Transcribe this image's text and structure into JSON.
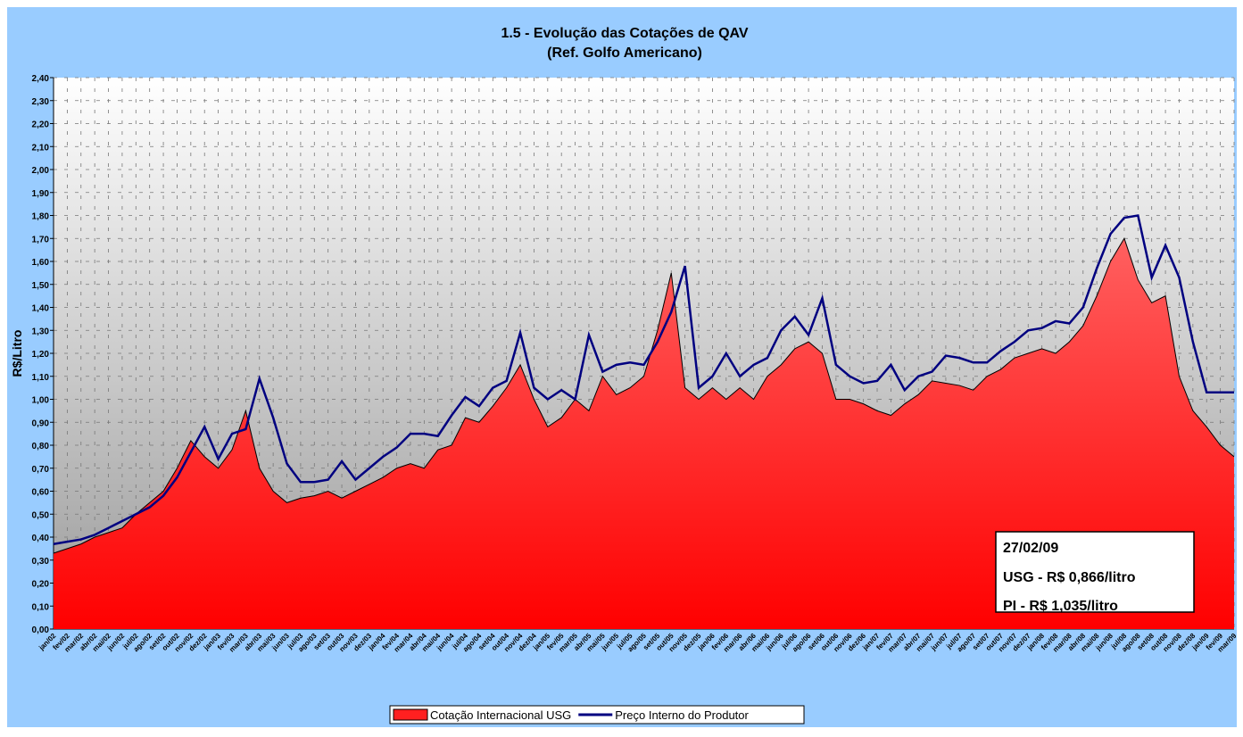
{
  "chart_data": {
    "type": "area-line",
    "title": "1.5 - Evolução das Cotações de QAV",
    "subtitle": "(Ref. Golfo Americano)",
    "y_label": "R$/Litro",
    "categories": [
      "jan/02",
      "fev/02",
      "mar/02",
      "abr/02",
      "mai/02",
      "jun/02",
      "jul/02",
      "ago/02",
      "set/02",
      "out/02",
      "nov/02",
      "dez/02",
      "jan/03",
      "fev/03",
      "mar/03",
      "abr/03",
      "mai/03",
      "jun/03",
      "jul/03",
      "ago/03",
      "set/03",
      "out/03",
      "nov/03",
      "dez/03",
      "jan/04",
      "fev/04",
      "mar/04",
      "abr/04",
      "mai/04",
      "jun/04",
      "jul/04",
      "ago/04",
      "set/04",
      "out/04",
      "nov/04",
      "dez/04",
      "jan/05",
      "fev/05",
      "mar/05",
      "abr/05",
      "mai/05",
      "jun/05",
      "jul/05",
      "ago/05",
      "set/05",
      "out/05",
      "nov/05",
      "dez/05",
      "jan/06",
      "fev/06",
      "mar/06",
      "abr/06",
      "mai/06",
      "jun/06",
      "jul/06",
      "ago/06",
      "set/06",
      "out/06",
      "nov/06",
      "dez/06",
      "jan/07",
      "fev/07",
      "mar/07",
      "abr/07",
      "mai/07",
      "jun/07",
      "jul/07",
      "ago/07",
      "set/07",
      "out/07",
      "nov/07",
      "dez/07",
      "jan/08",
      "fev/08",
      "mar/08",
      "abr/08",
      "mai/08",
      "jun/08",
      "jul/08",
      "ago/08",
      "set/08",
      "out/08",
      "nov/08",
      "dez/08",
      "jan/09",
      "fev/09",
      "mar/09"
    ],
    "series": [
      {
        "name": "Cotação Internacional USG",
        "color": "#ff2020",
        "kind": "area",
        "values": [
          0.33,
          0.35,
          0.37,
          0.4,
          0.42,
          0.44,
          0.5,
          0.55,
          0.6,
          0.7,
          0.82,
          0.75,
          0.7,
          0.78,
          0.95,
          0.7,
          0.6,
          0.55,
          0.57,
          0.58,
          0.6,
          0.57,
          0.6,
          0.63,
          0.66,
          0.7,
          0.72,
          0.7,
          0.78,
          0.8,
          0.92,
          0.9,
          0.97,
          1.05,
          1.15,
          1.0,
          0.88,
          0.92,
          1.0,
          0.95,
          1.1,
          1.02,
          1.05,
          1.1,
          1.3,
          1.55,
          1.05,
          1.0,
          1.05,
          1.0,
          1.05,
          1.0,
          1.1,
          1.15,
          1.22,
          1.25,
          1.2,
          1.0,
          1.0,
          0.98,
          0.95,
          0.93,
          0.98,
          1.02,
          1.08,
          1.07,
          1.06,
          1.04,
          1.1,
          1.13,
          1.18,
          1.2,
          1.22,
          1.2,
          1.25,
          1.32,
          1.45,
          1.6,
          1.7,
          1.52,
          1.42,
          1.45,
          1.1,
          0.95,
          0.88,
          0.8,
          0.75
        ]
      },
      {
        "name": "Preço Interno do Produtor",
        "color": "#000080",
        "kind": "line",
        "values": [
          0.37,
          0.38,
          0.39,
          0.41,
          0.44,
          0.47,
          0.5,
          0.53,
          0.58,
          0.66,
          0.77,
          0.88,
          0.74,
          0.85,
          0.87,
          1.09,
          0.92,
          0.72,
          0.64,
          0.64,
          0.65,
          0.73,
          0.65,
          0.7,
          0.75,
          0.79,
          0.85,
          0.85,
          0.84,
          0.93,
          1.01,
          0.97,
          1.05,
          1.08,
          1.29,
          1.05,
          1.0,
          1.04,
          1.0,
          1.28,
          1.12,
          1.15,
          1.16,
          1.15,
          1.25,
          1.38,
          1.58,
          1.05,
          1.1,
          1.2,
          1.1,
          1.15,
          1.18,
          1.3,
          1.36,
          1.28,
          1.44,
          1.15,
          1.1,
          1.07,
          1.08,
          1.15,
          1.04,
          1.1,
          1.12,
          1.19,
          1.18,
          1.16,
          1.16,
          1.21,
          1.25,
          1.3,
          1.31,
          1.34,
          1.33,
          1.4,
          1.57,
          1.72,
          1.79,
          1.8,
          1.53,
          1.67,
          1.53,
          1.25,
          1.03,
          1.03,
          1.03
        ]
      }
    ],
    "ylim": [
      0,
      2.4
    ],
    "yticks": [
      {
        "value": 0,
        "label": "0,00"
      },
      {
        "value": 0.1,
        "label": "0,10"
      },
      {
        "value": 0.2,
        "label": "0,20"
      },
      {
        "value": 0.3,
        "label": "0,30"
      },
      {
        "value": 0.4,
        "label": "0,40"
      },
      {
        "value": 0.5,
        "label": "0,50"
      },
      {
        "value": 0.6,
        "label": "0,60"
      },
      {
        "value": 0.7,
        "label": "0,70"
      },
      {
        "value": 0.8,
        "label": "0,80"
      },
      {
        "value": 0.9,
        "label": "0,90"
      },
      {
        "value": 1.0,
        "label": "1,00"
      },
      {
        "value": 1.1,
        "label": "1,10"
      },
      {
        "value": 1.2,
        "label": "1,20"
      },
      {
        "value": 1.3,
        "label": "1,30"
      },
      {
        "value": 1.4,
        "label": "1,40"
      },
      {
        "value": 1.5,
        "label": "1,50"
      },
      {
        "value": 1.6,
        "label": "1,60"
      },
      {
        "value": 1.7,
        "label": "1,70"
      },
      {
        "value": 1.8,
        "label": "1,80"
      },
      {
        "value": 1.9,
        "label": "1,90"
      },
      {
        "value": 2.0,
        "label": "2,00"
      },
      {
        "value": 2.1,
        "label": "2,10"
      },
      {
        "value": 2.2,
        "label": "2,20"
      },
      {
        "value": 2.3,
        "label": "2,30"
      },
      {
        "value": 2.4,
        "label": "2,40"
      }
    ],
    "grid": true,
    "legend": "bottom",
    "annotation": [
      "27/02/09",
      "USG - R$ 0,866/litro",
      "PI - R$ 1,035/litro"
    ]
  }
}
